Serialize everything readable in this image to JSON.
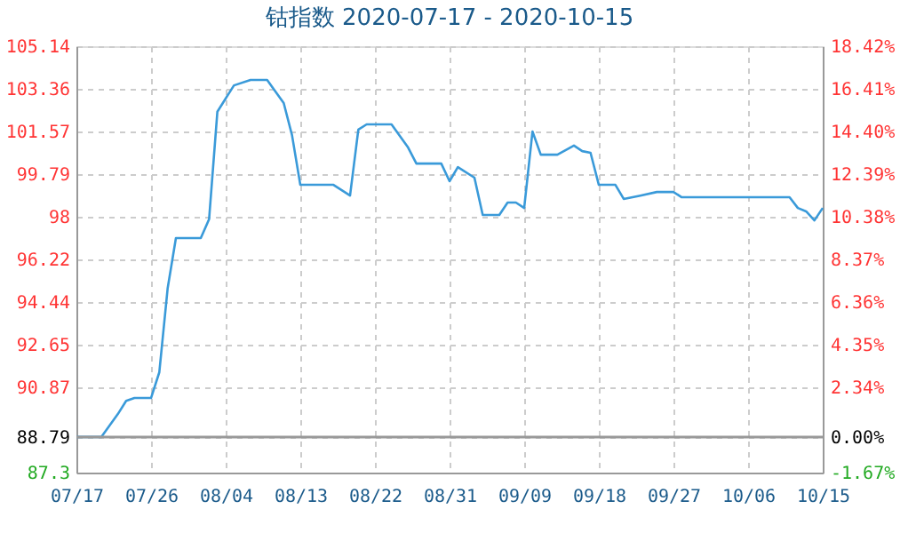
{
  "chart_data": {
    "type": "line",
    "title": "钴指数 2020-07-17 - 2020-10-15",
    "x": [
      "2020-07-17",
      "2020-07-20",
      "2020-07-22",
      "2020-07-23",
      "2020-07-24",
      "2020-07-26",
      "2020-07-27",
      "2020-07-28",
      "2020-07-29",
      "2020-08-01",
      "2020-08-02",
      "2020-08-03",
      "2020-08-05",
      "2020-08-07",
      "2020-08-09",
      "2020-08-11",
      "2020-08-12",
      "2020-08-13",
      "2020-08-17",
      "2020-08-19",
      "2020-08-20",
      "2020-08-21",
      "2020-08-24",
      "2020-08-26",
      "2020-08-27",
      "2020-08-30",
      "2020-08-31",
      "2020-09-01",
      "2020-09-03",
      "2020-09-04",
      "2020-09-06",
      "2020-09-07",
      "2020-09-08",
      "2020-09-09",
      "2020-09-10",
      "2020-09-11",
      "2020-09-13",
      "2020-09-15",
      "2020-09-16",
      "2020-09-17",
      "2020-09-18",
      "2020-09-20",
      "2020-09-21",
      "2020-09-23",
      "2020-09-25",
      "2020-09-27",
      "2020-09-28",
      "2020-10-11",
      "2020-10-12",
      "2020-10-13",
      "2020-10-14",
      "2020-10-15"
    ],
    "series": [
      {
        "color": "#3a9ad9",
        "values": [
          88.79,
          88.79,
          89.75,
          90.3,
          90.42,
          90.42,
          91.5,
          95.0,
          97.11,
          97.11,
          97.9,
          102.4,
          103.5,
          103.73,
          103.73,
          102.76,
          101.42,
          99.34,
          99.34,
          98.89,
          101.65,
          101.87,
          101.87,
          100.9,
          100.23,
          100.23,
          99.49,
          100.08,
          99.64,
          98.08,
          98.08,
          98.6,
          98.6,
          98.37,
          101.57,
          100.6,
          100.6,
          100.98,
          100.75,
          100.68,
          99.34,
          99.34,
          98.75,
          98.89,
          99.04,
          99.04,
          98.82,
          98.82,
          98.37,
          98.23,
          97.85,
          98.37
        ]
      }
    ],
    "xlim": [
      "2020-07-17",
      "2020-10-15"
    ],
    "xticks": [
      {
        "value": "2020-07-17",
        "label": "07/17"
      },
      {
        "value": "2020-07-26",
        "label": "07/26"
      },
      {
        "value": "2020-08-04",
        "label": "08/04"
      },
      {
        "value": "2020-08-13",
        "label": "08/13"
      },
      {
        "value": "2020-08-22",
        "label": "08/22"
      },
      {
        "value": "2020-08-31",
        "label": "08/31"
      },
      {
        "value": "2020-09-09",
        "label": "09/09"
      },
      {
        "value": "2020-09-18",
        "label": "09/18"
      },
      {
        "value": "2020-09-27",
        "label": "09/27"
      },
      {
        "value": "2020-10-06",
        "label": "10/06"
      },
      {
        "value": "2020-10-15",
        "label": "10/15"
      }
    ],
    "ylim": [
      87.3,
      105.14
    ],
    "yticks": [
      87.3,
      88.79,
      90.87,
      92.65,
      94.44,
      96.22,
      98,
      99.79,
      101.57,
      103.36,
      105.14
    ],
    "y2lim": [
      -1.67,
      18.42
    ],
    "y2ticks": [
      {
        "value": -1.67,
        "label": "-1.67%"
      },
      {
        "value": 0,
        "label": "0.00%"
      },
      {
        "value": 2.34,
        "label": "2.34%"
      },
      {
        "value": 4.35,
        "label": "4.35%"
      },
      {
        "value": 6.36,
        "label": "6.36%"
      },
      {
        "value": 8.37,
        "label": "8.37%"
      },
      {
        "value": 10.38,
        "label": "10.38%"
      },
      {
        "value": 12.39,
        "label": "12.39%"
      },
      {
        "value": 14.4,
        "label": "14.40%"
      },
      {
        "value": 16.41,
        "label": "16.41%"
      },
      {
        "value": 18.42,
        "label": "18.42%"
      }
    ],
    "ref_lines": [
      {
        "axis": "y",
        "value": 88.79,
        "color": "#999999"
      }
    ],
    "grid": true,
    "legend": false,
    "marker": "none",
    "line_style": "solid"
  }
}
